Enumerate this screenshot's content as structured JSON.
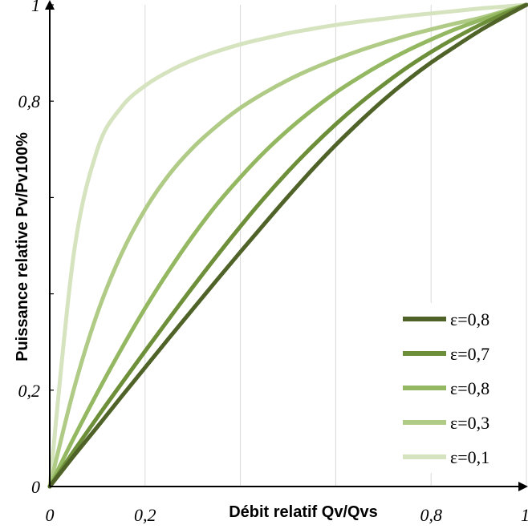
{
  "chart_data": {
    "type": "line",
    "title": "",
    "xlabel": "Débit relatif Qv/Qvs",
    "ylabel": "Puissance relative Pv/Pv100%",
    "xlim": [
      0,
      1
    ],
    "ylim": [
      0,
      1
    ],
    "x_ticks": [
      0,
      0.2,
      0.4,
      0.6,
      0.8,
      1
    ],
    "x_tick_labels": [
      "0",
      "0,2",
      "",
      "",
      "0,8",
      "1"
    ],
    "y_ticks": [
      0,
      0.2,
      0.4,
      0.6,
      0.8,
      1
    ],
    "y_tick_labels": [
      "0",
      "0,2",
      "",
      "",
      "0,8",
      "1"
    ],
    "grid": "vertical",
    "legend_position": "bottom-right",
    "x": [
      0,
      0.05,
      0.1,
      0.15,
      0.2,
      0.25,
      0.3,
      0.35,
      0.4,
      0.45,
      0.5,
      0.55,
      0.6,
      0.65,
      0.7,
      0.75,
      0.8,
      0.85,
      0.9,
      0.95,
      1
    ],
    "series": [
      {
        "name": "ε=0,8",
        "color": "#4f6228",
        "values": [
          0,
          0.063,
          0.124,
          0.186,
          0.247,
          0.308,
          0.368,
          0.428,
          0.487,
          0.545,
          0.602,
          0.657,
          0.709,
          0.757,
          0.802,
          0.843,
          0.88,
          0.913,
          0.945,
          0.973,
          1
        ]
      },
      {
        "name": "ε=0,7",
        "color": "#6e8f3a",
        "values": [
          0,
          0.073,
          0.144,
          0.213,
          0.281,
          0.348,
          0.414,
          0.478,
          0.54,
          0.599,
          0.654,
          0.705,
          0.752,
          0.795,
          0.834,
          0.87,
          0.902,
          0.931,
          0.957,
          0.98,
          1
        ]
      },
      {
        "name": "ε=0,8",
        "color": "#93b861",
        "values": [
          0,
          0.1,
          0.195,
          0.285,
          0.37,
          0.448,
          0.52,
          0.585,
          0.642,
          0.694,
          0.74,
          0.781,
          0.818,
          0.85,
          0.879,
          0.905,
          0.928,
          0.949,
          0.967,
          0.984,
          1
        ]
      },
      {
        "name": "ε=0,3",
        "color": "#afcb86",
        "values": [
          0,
          0.2,
          0.36,
          0.482,
          0.575,
          0.647,
          0.703,
          0.748,
          0.786,
          0.817,
          0.844,
          0.867,
          0.887,
          0.905,
          0.921,
          0.936,
          0.949,
          0.961,
          0.972,
          0.986,
          1
        ]
      },
      {
        "name": "ε=0,1",
        "color": "#d6e3bf",
        "values": [
          0,
          0.48,
          0.7,
          0.787,
          0.832,
          0.862,
          0.885,
          0.903,
          0.918,
          0.93,
          0.941,
          0.95,
          0.958,
          0.965,
          0.971,
          0.977,
          0.982,
          0.987,
          0.992,
          0.996,
          1
        ]
      }
    ]
  }
}
